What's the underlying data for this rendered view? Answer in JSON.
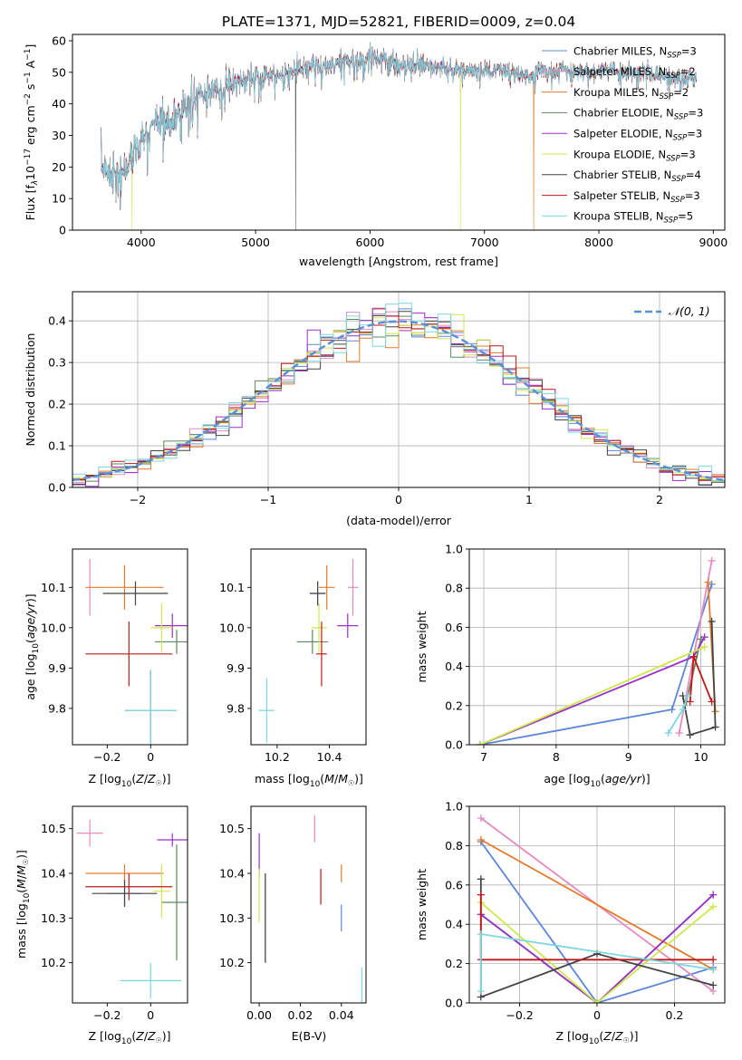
{
  "title": "PLATE=1371, MJD=52821, FIBERID=0009, z=0.04",
  "colors": {
    "chabrier_miles": "#5b87d6",
    "salpeter_miles": "#e58ac0",
    "kroupa_miles": "#e27a2a",
    "chabrier_elodie": "#5c8a5c",
    "salpeter_elodie": "#9b30c8",
    "kroupa_elodie": "#cde84b",
    "chabrier_stelib": "#454545",
    "salpeter_stelib": "#c01818",
    "kroupa_stelib": "#7fd6e0",
    "normal": "#5b8fd6"
  },
  "models": [
    {
      "key": "chabrier_miles",
      "label": "Chabrier MILES, N",
      "sub": "SSP",
      "suffix": "=3"
    },
    {
      "key": "salpeter_miles",
      "label": "Salpeter MILES, N",
      "sub": "SSP",
      "suffix": "=2"
    },
    {
      "key": "kroupa_miles",
      "label": "Kroupa MILES, N",
      "sub": "SSP",
      "suffix": "=2"
    },
    {
      "key": "chabrier_elodie",
      "label": "Chabrier ELODIE, N",
      "sub": "SSP",
      "suffix": "=3"
    },
    {
      "key": "salpeter_elodie",
      "label": "Salpeter ELODIE, N",
      "sub": "SSP",
      "suffix": "=3"
    },
    {
      "key": "kroupa_elodie",
      "label": "Kroupa ELODIE, N",
      "sub": "SSP",
      "suffix": "=3"
    },
    {
      "key": "chabrier_stelib",
      "label": "Chabrier STELIB, N",
      "sub": "SSP",
      "suffix": "=4"
    },
    {
      "key": "salpeter_stelib",
      "label": "Salpeter STELIB, N",
      "sub": "SSP",
      "suffix": "=3"
    },
    {
      "key": "kroupa_stelib",
      "label": "Kroupa STELIB, N",
      "sub": "SSP",
      "suffix": "=5"
    }
  ],
  "chart_data": [
    {
      "id": "spectrum",
      "type": "line",
      "xlabel": "wavelength [Angstrom, rest frame]",
      "ylabel_parts": {
        "pre": "Flux [f",
        "sub1": "λ",
        "mid": "10",
        "sup1": "−17",
        "post": " erg cm",
        "sup2": "−2",
        "mid2": " s",
        "sup3": "−1",
        "mid3": " A",
        "sup4": "−1",
        "end": "]"
      },
      "xlim": [
        3400,
        9100
      ],
      "ylim": [
        0,
        62
      ],
      "xticks": [
        4000,
        5000,
        6000,
        7000,
        8000,
        9000
      ],
      "yticks": [
        0,
        10,
        20,
        30,
        40,
        50,
        60
      ],
      "x_range": [
        3650,
        8850
      ],
      "envelope": [
        [
          3650,
          20
        ],
        [
          3800,
          17
        ],
        [
          3900,
          22
        ],
        [
          4000,
          28
        ],
        [
          4100,
          33
        ],
        [
          4200,
          33
        ],
        [
          4300,
          36
        ],
        [
          4400,
          40
        ],
        [
          4500,
          42
        ],
        [
          4600,
          44
        ],
        [
          4700,
          45
        ],
        [
          4800,
          47
        ],
        [
          4900,
          48
        ],
        [
          5000,
          48
        ],
        [
          5100,
          49
        ],
        [
          5200,
          49
        ],
        [
          5300,
          50
        ],
        [
          5400,
          51
        ],
        [
          5500,
          52
        ],
        [
          5600,
          52
        ],
        [
          5700,
          53
        ],
        [
          5800,
          54
        ],
        [
          5900,
          53
        ],
        [
          6000,
          55
        ],
        [
          6100,
          54
        ],
        [
          6200,
          53
        ],
        [
          6300,
          52
        ],
        [
          6400,
          53
        ],
        [
          6500,
          52
        ],
        [
          6600,
          52
        ],
        [
          6700,
          52
        ],
        [
          6800,
          51
        ],
        [
          6900,
          51
        ],
        [
          7000,
          50
        ],
        [
          7100,
          51
        ],
        [
          7200,
          50
        ],
        [
          7300,
          49
        ],
        [
          7400,
          49
        ],
        [
          7500,
          51
        ],
        [
          7600,
          50
        ],
        [
          7700,
          51
        ],
        [
          7800,
          50
        ],
        [
          7900,
          50
        ],
        [
          8000,
          50
        ],
        [
          8100,
          51
        ],
        [
          8200,
          50
        ],
        [
          8300,
          50
        ],
        [
          8400,
          50
        ],
        [
          8500,
          49
        ],
        [
          8600,
          48
        ],
        [
          8700,
          48
        ],
        [
          8800,
          48
        ],
        [
          8850,
          48
        ]
      ],
      "dropouts": [
        {
          "x": 3920,
          "y": 0,
          "series": "kroupa_elodie"
        },
        {
          "x": 5350,
          "y": 0,
          "series": "chabrier_stelib"
        },
        {
          "x": 6790,
          "y": 0,
          "series": "kroupa_elodie"
        },
        {
          "x": 7430,
          "y": 0,
          "series": "kroupa_miles"
        }
      ]
    },
    {
      "id": "residuals",
      "type": "histogram",
      "xlabel": "(data-model)/error",
      "ylabel": "Normed distribution",
      "xlim": [
        -2.5,
        2.5
      ],
      "ylim": [
        0,
        0.47
      ],
      "xticks": [
        -2,
        -1,
        0,
        1,
        2
      ],
      "yticks": [
        0.0,
        0.1,
        0.2,
        0.3,
        0.4
      ],
      "legend": "𝒩(0, 1)",
      "bin_width": 0.1,
      "grid": true
    },
    {
      "id": "age_vs_Z",
      "type": "errorbar",
      "xlabel": "Z [log₁₀(Z/Z☉)]",
      "ylabel": "age  [log₁₀(age/yr)]",
      "xlim": [
        -0.36,
        0.17
      ],
      "ylim": [
        9.71,
        10.195
      ],
      "xticks": [
        -0.2,
        0.0
      ],
      "yticks": [
        9.8,
        9.9,
        10.0,
        10.1
      ],
      "points": [
        {
          "series": "chabrier_miles",
          "x": 0.0,
          "y": 9.795,
          "xerr": 0.12,
          "yerr": 0.1
        },
        {
          "series": "salpeter_miles",
          "x": -0.28,
          "y": 10.1,
          "xerr": 0.0,
          "yerr": 0.07
        },
        {
          "series": "kroupa_miles",
          "x": -0.12,
          "y": 10.1,
          "xerr": 0.18,
          "yerr": 0.055
        },
        {
          "series": "chabrier_elodie",
          "x": 0.12,
          "y": 9.965,
          "xerr": 0.1,
          "yerr": 0.03
        },
        {
          "series": "salpeter_elodie",
          "x": 0.1,
          "y": 10.005,
          "xerr": 0.08,
          "yerr": 0.03
        },
        {
          "series": "kroupa_elodie",
          "x": 0.05,
          "y": 10.0,
          "xerr": 0.05,
          "yerr": 0.06
        },
        {
          "series": "chabrier_stelib",
          "x": -0.07,
          "y": 10.085,
          "xerr": 0.15,
          "yerr": 0.03
        },
        {
          "series": "salpeter_stelib",
          "x": -0.1,
          "y": 9.935,
          "xerr": 0.2,
          "yerr": 0.08
        },
        {
          "series": "kroupa_stelib",
          "x": 0.0,
          "y": 9.795,
          "xerr": 0.12,
          "yerr": 0.1
        }
      ]
    },
    {
      "id": "age_vs_mass",
      "type": "errorbar",
      "xlabel": "mass [log₁₀(M/M☉)]",
      "ylabel": "",
      "xlim": [
        10.1,
        10.54
      ],
      "ylim": [
        9.71,
        10.195
      ],
      "xticks": [
        10.2,
        10.4
      ],
      "yticks": [
        9.8,
        9.9,
        10.0,
        10.1
      ],
      "points": [
        {
          "series": "chabrier_miles",
          "x": 10.355,
          "y": 10.085,
          "xerr": 0.03,
          "yerr": 0.03
        },
        {
          "series": "salpeter_miles",
          "x": 10.49,
          "y": 10.1,
          "xerr": 0.02,
          "yerr": 0.07
        },
        {
          "series": "kroupa_miles",
          "x": 10.39,
          "y": 10.1,
          "xerr": 0.03,
          "yerr": 0.055
        },
        {
          "series": "chabrier_elodie",
          "x": 10.335,
          "y": 9.965,
          "xerr": 0.06,
          "yerr": 0.03
        },
        {
          "series": "salpeter_elodie",
          "x": 10.47,
          "y": 10.005,
          "xerr": 0.04,
          "yerr": 0.03
        },
        {
          "series": "kroupa_elodie",
          "x": 10.36,
          "y": 10.0,
          "xerr": 0.03,
          "yerr": 0.06
        },
        {
          "series": "chabrier_stelib",
          "x": 10.355,
          "y": 10.085,
          "xerr": 0.03,
          "yerr": 0.03
        },
        {
          "series": "salpeter_stelib",
          "x": 10.37,
          "y": 9.935,
          "xerr": 0.02,
          "yerr": 0.08
        },
        {
          "series": "kroupa_stelib",
          "x": 10.16,
          "y": 9.795,
          "xerr": 0.03,
          "yerr": 0.08
        }
      ]
    },
    {
      "id": "weight_vs_age",
      "type": "line",
      "xlabel": "age  [log₁₀(age/yr)]",
      "ylabel": "mass weight",
      "xlim": [
        6.8,
        10.33
      ],
      "ylim": [
        0,
        1.0
      ],
      "xticks": [
        7,
        8,
        9,
        10
      ],
      "yticks": [
        0.0,
        0.2,
        0.4,
        0.6,
        0.8,
        1.0
      ],
      "grid": true,
      "series": [
        {
          "series": "chabrier_miles",
          "x": [
            6.95,
            9.6,
            10.15
          ],
          "y": [
            0.0,
            0.18,
            0.82
          ]
        },
        {
          "series": "salpeter_miles",
          "x": [
            9.7,
            10.15
          ],
          "y": [
            0.06,
            0.94
          ]
        },
        {
          "series": "kroupa_miles",
          "x": [
            10.1,
            10.2
          ],
          "y": [
            0.83,
            0.17
          ]
        },
        {
          "series": "chabrier_elodie",
          "x": [
            9.8,
            10.0
          ],
          "y": [
            0.22,
            0.54
          ]
        },
        {
          "series": "salpeter_elodie",
          "x": [
            6.95,
            9.9,
            10.05
          ],
          "y": [
            0.0,
            0.45,
            0.55
          ]
        },
        {
          "series": "kroupa_elodie",
          "x": [
            6.95,
            10.05
          ],
          "y": [
            0.0,
            0.5
          ]
        },
        {
          "series": "chabrier_stelib",
          "x": [
            9.75,
            9.85,
            10.2,
            10.15
          ],
          "y": [
            0.25,
            0.05,
            0.09,
            0.63
          ]
        },
        {
          "series": "salpeter_stelib",
          "x": [
            9.85,
            9.9,
            10.15
          ],
          "y": [
            0.22,
            0.45,
            0.22
          ]
        },
        {
          "series": "kroupa_stelib",
          "x": [
            9.55,
            9.75,
            9.82
          ],
          "y": [
            0.06,
            0.18,
            0.25
          ]
        }
      ]
    },
    {
      "id": "mass_vs_Z",
      "type": "errorbar",
      "xlabel": "Z [log₁₀(Z/Z☉)]",
      "ylabel": "mass [log₁₀(M/M☉)]",
      "xlim": [
        -0.36,
        0.17
      ],
      "ylim": [
        10.11,
        10.55
      ],
      "xticks": [
        -0.2,
        0.0
      ],
      "yticks": [
        10.2,
        10.3,
        10.4,
        10.5
      ],
      "points": [
        {
          "series": "chabrier_miles",
          "x": -0.12,
          "y": 10.355,
          "xerr": 0.08,
          "yerr": 0.03
        },
        {
          "series": "salpeter_miles",
          "x": -0.28,
          "y": 10.49,
          "xerr": 0.06,
          "yerr": 0.03
        },
        {
          "series": "kroupa_miles",
          "x": -0.12,
          "y": 10.4,
          "xerr": 0.18,
          "yerr": 0.02
        },
        {
          "series": "chabrier_elodie",
          "x": 0.12,
          "y": 10.335,
          "xerr": 0.07,
          "yerr": 0.13
        },
        {
          "series": "salpeter_elodie",
          "x": 0.1,
          "y": 10.475,
          "xerr": 0.07,
          "yerr": 0.015
        },
        {
          "series": "kroupa_elodie",
          "x": 0.05,
          "y": 10.36,
          "xerr": 0.04,
          "yerr": 0.06
        },
        {
          "series": "chabrier_stelib",
          "x": -0.12,
          "y": 10.355,
          "xerr": 0.15,
          "yerr": 0.03
        },
        {
          "series": "salpeter_stelib",
          "x": -0.1,
          "y": 10.37,
          "xerr": 0.2,
          "yerr": 0.03
        },
        {
          "series": "kroupa_stelib",
          "x": 0.0,
          "y": 10.16,
          "xerr": 0.14,
          "yerr": 0.04
        }
      ]
    },
    {
      "id": "mass_vs_ebv",
      "type": "errorbar",
      "xlabel": "E(B-V)",
      "ylabel": "",
      "xlim": [
        -0.004,
        0.052
      ],
      "ylim": [
        10.11,
        10.55
      ],
      "xticks": [
        0.0,
        0.02,
        0.04
      ],
      "yticks": [
        10.2,
        10.3,
        10.4,
        10.5
      ],
      "points": [
        {
          "series": "chabrier_miles",
          "x": 0.04,
          "y": 10.3,
          "xerr": 0.0,
          "yerr": 0.03
        },
        {
          "series": "salpeter_miles",
          "x": 0.027,
          "y": 10.5,
          "xerr": 0.0,
          "yerr": 0.03
        },
        {
          "series": "kroupa_miles",
          "x": 0.04,
          "y": 10.4,
          "xerr": 0.0,
          "yerr": 0.02
        },
        {
          "series": "chabrier_elodie",
          "x": 0.003,
          "y": 10.3,
          "xerr": 0.0,
          "yerr": 0.1
        },
        {
          "series": "salpeter_elodie",
          "x": 0.0,
          "y": 10.44,
          "xerr": 0.0,
          "yerr": 0.05
        },
        {
          "series": "kroupa_elodie",
          "x": 0.0,
          "y": 10.35,
          "xerr": 0.0,
          "yerr": 0.06
        },
        {
          "series": "chabrier_stelib",
          "x": 0.003,
          "y": 10.3,
          "xerr": 0.0,
          "yerr": 0.1
        },
        {
          "series": "salpeter_stelib",
          "x": 0.03,
          "y": 10.37,
          "xerr": 0.0,
          "yerr": 0.04
        },
        {
          "series": "kroupa_stelib",
          "x": 0.05,
          "y": 10.14,
          "xerr": 0.0,
          "yerr": 0.05
        }
      ]
    },
    {
      "id": "weight_vs_Z",
      "type": "line",
      "xlabel": "Z [log₁₀(Z/Z☉)]",
      "ylabel": "mass weight",
      "xlim": [
        -0.33,
        0.33
      ],
      "ylim": [
        0,
        1.0
      ],
      "xticks": [
        -0.2,
        0.0,
        0.2
      ],
      "yticks": [
        0.0,
        0.2,
        0.4,
        0.6,
        0.8,
        1.0
      ],
      "grid": true,
      "series": [
        {
          "series": "chabrier_miles",
          "x": [
            -0.3,
            0.0,
            0.3
          ],
          "y": [
            0.82,
            0.0,
            0.18
          ]
        },
        {
          "series": "salpeter_miles",
          "x": [
            -0.3,
            0.3
          ],
          "y": [
            0.94,
            0.06
          ]
        },
        {
          "series": "kroupa_miles",
          "x": [
            -0.3,
            0.3
          ],
          "y": [
            0.83,
            0.17
          ]
        },
        {
          "series": "chabrier_elodie",
          "x": [
            -0.3,
            0.0,
            0.3
          ],
          "y": [
            0.45,
            0.0,
            0.55
          ]
        },
        {
          "series": "salpeter_elodie",
          "x": [
            -0.3,
            0.0,
            0.3
          ],
          "y": [
            0.45,
            0.0,
            0.55
          ]
        },
        {
          "series": "kroupa_elodie",
          "x": [
            -0.3,
            0.0,
            0.3
          ],
          "y": [
            0.51,
            0.0,
            0.49
          ]
        },
        {
          "series": "chabrier_stelib",
          "x": [
            -0.3,
            -0.3,
            0.0,
            0.3
          ],
          "y": [
            0.63,
            0.03,
            0.25,
            0.09
          ]
        },
        {
          "series": "salpeter_stelib",
          "x": [
            -0.3,
            -0.3,
            0.3
          ],
          "y": [
            0.55,
            0.22,
            0.22
          ]
        },
        {
          "series": "kroupa_stelib",
          "x": [
            -0.3,
            -0.3,
            0.3
          ],
          "y": [
            0.06,
            0.35,
            0.17
          ]
        }
      ]
    }
  ]
}
